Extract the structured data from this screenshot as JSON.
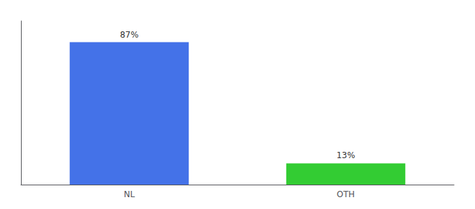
{
  "chart_data": {
    "type": "bar",
    "categories": [
      "NL",
      "OTH"
    ],
    "values": [
      87,
      13
    ],
    "value_labels": [
      "87%",
      "13%"
    ],
    "data_labels": true,
    "colors": [
      "#4472e8",
      "#33cc33"
    ],
    "ylim": [
      0,
      100
    ],
    "tick_labels": "x",
    "grid": false
  }
}
